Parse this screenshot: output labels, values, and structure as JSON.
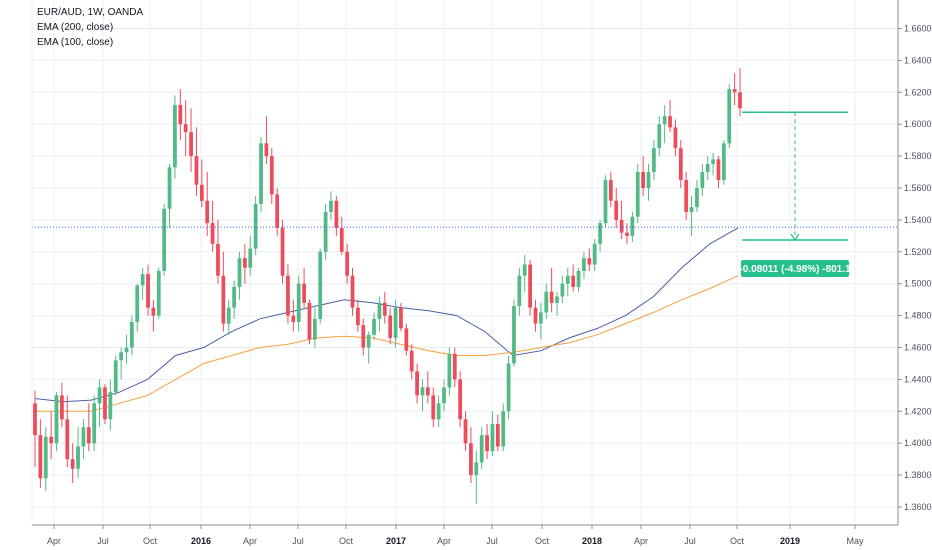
{
  "legend": {
    "symbol": "EUR/AUD, 1W, OANDA",
    "ema200": "EMA (200, close)",
    "ema100": "EMA (100, close)"
  },
  "colors": {
    "up": "#53b987",
    "down": "#eb4d5c",
    "ema200": "#4a5fa8",
    "ema100": "#f7a040",
    "grid": "#e9eef2",
    "hline": "#2962ff",
    "measure": "#26c08a"
  },
  "measure": {
    "label": "-0.08011 (-4.98%) -801.1"
  },
  "chart_data": {
    "type": "candlestick",
    "title": "EUR/AUD, 1W, OANDA",
    "ylim": [
      1.35,
      1.67
    ],
    "y_ticks": [
      "1.66000",
      "1.64000",
      "1.62000",
      "1.60000",
      "1.58000",
      "1.56000",
      "1.54000",
      "1.52000",
      "1.50000",
      "1.48000",
      "1.46000",
      "1.44000",
      "1.42000",
      "1.40000",
      "1.38000",
      "1.36000"
    ],
    "x_ticks": [
      "Apr",
      "Jul",
      "Oct",
      "2016",
      "Apr",
      "Jul",
      "Oct",
      "2017",
      "Apr",
      "Jul",
      "Oct",
      "2018",
      "Apr",
      "Jul",
      "Oct",
      "2019",
      "May"
    ],
    "bold_ticks": [
      "2016",
      "2017",
      "2018",
      "2019"
    ],
    "horizontal_line": 1.5355,
    "measure": {
      "from": 1.6075,
      "to": 1.5274,
      "change": -0.08011,
      "percent": -4.98,
      "pips": -801.1
    },
    "series": [
      {
        "name": "EMA (200, close)",
        "values": [
          1.428,
          1.426,
          1.427,
          1.432,
          1.44,
          1.455,
          1.46,
          1.47,
          1.478,
          1.482,
          1.486,
          1.49,
          1.488,
          1.485,
          1.483,
          1.48,
          1.47,
          1.455,
          1.458,
          1.466,
          1.472,
          1.48,
          1.492,
          1.51,
          1.525,
          1.535
        ]
      },
      {
        "name": "EMA (100, close)",
        "values": [
          1.42,
          1.42,
          1.42,
          1.425,
          1.43,
          1.44,
          1.45,
          1.455,
          1.46,
          1.462,
          1.466,
          1.467,
          1.466,
          1.462,
          1.458,
          1.455,
          1.455,
          1.457,
          1.46,
          1.463,
          1.468,
          1.475,
          1.482,
          1.49,
          1.497,
          1.505
        ]
      }
    ],
    "ohlc": [
      [
        1.425,
        1.433,
        1.385,
        1.405
      ],
      [
        1.405,
        1.415,
        1.372,
        1.378
      ],
      [
        1.378,
        1.41,
        1.37,
        1.404
      ],
      [
        1.404,
        1.42,
        1.39,
        1.4
      ],
      [
        1.4,
        1.432,
        1.395,
        1.43
      ],
      [
        1.43,
        1.438,
        1.41,
        1.415
      ],
      [
        1.415,
        1.43,
        1.385,
        1.39
      ],
      [
        1.39,
        1.4,
        1.375,
        1.384
      ],
      [
        1.384,
        1.41,
        1.378,
        1.398
      ],
      [
        1.398,
        1.415,
        1.39,
        1.41
      ],
      [
        1.41,
        1.425,
        1.395,
        1.4
      ],
      [
        1.4,
        1.43,
        1.395,
        1.425
      ],
      [
        1.425,
        1.44,
        1.41,
        1.435
      ],
      [
        1.435,
        1.437,
        1.412,
        1.415
      ],
      [
        1.415,
        1.44,
        1.408,
        1.432
      ],
      [
        1.432,
        1.455,
        1.43,
        1.452
      ],
      [
        1.452,
        1.46,
        1.44,
        1.457
      ],
      [
        1.457,
        1.468,
        1.45,
        1.46
      ],
      [
        1.46,
        1.48,
        1.455,
        1.476
      ],
      [
        1.476,
        1.5,
        1.47,
        1.499
      ],
      [
        1.499,
        1.51,
        1.49,
        1.506
      ],
      [
        1.506,
        1.512,
        1.48,
        1.485
      ],
      [
        1.485,
        1.49,
        1.47,
        1.48
      ],
      [
        1.48,
        1.51,
        1.478,
        1.508
      ],
      [
        1.508,
        1.55,
        1.505,
        1.547
      ],
      [
        1.547,
        1.575,
        1.535,
        1.573
      ],
      [
        1.573,
        1.618,
        1.566,
        1.612
      ],
      [
        1.612,
        1.622,
        1.59,
        1.6
      ],
      [
        1.6,
        1.615,
        1.58,
        1.595
      ],
      [
        1.595,
        1.61,
        1.57,
        1.58
      ],
      [
        1.58,
        1.598,
        1.555,
        1.562
      ],
      [
        1.562,
        1.578,
        1.548,
        1.552
      ],
      [
        1.552,
        1.57,
        1.53,
        1.538
      ],
      [
        1.538,
        1.552,
        1.52,
        1.525
      ],
      [
        1.525,
        1.54,
        1.5,
        1.505
      ],
      [
        1.505,
        1.52,
        1.47,
        1.475
      ],
      [
        1.475,
        1.49,
        1.468,
        1.485
      ],
      [
        1.485,
        1.502,
        1.478,
        1.498
      ],
      [
        1.498,
        1.52,
        1.49,
        1.516
      ],
      [
        1.516,
        1.525,
        1.5,
        1.51
      ],
      [
        1.51,
        1.53,
        1.505,
        1.522
      ],
      [
        1.522,
        1.555,
        1.518,
        1.55
      ],
      [
        1.55,
        1.592,
        1.545,
        1.588
      ],
      [
        1.588,
        1.605,
        1.575,
        1.58
      ],
      [
        1.58,
        1.585,
        1.55,
        1.556
      ],
      [
        1.556,
        1.56,
        1.53,
        1.535
      ],
      [
        1.535,
        1.54,
        1.5,
        1.505
      ],
      [
        1.505,
        1.512,
        1.475,
        1.48
      ],
      [
        1.48,
        1.49,
        1.47,
        1.476
      ],
      [
        1.476,
        1.505,
        1.47,
        1.5
      ],
      [
        1.5,
        1.51,
        1.485,
        1.488
      ],
      [
        1.488,
        1.49,
        1.462,
        1.465
      ],
      [
        1.465,
        1.485,
        1.46,
        1.478
      ],
      [
        1.478,
        1.522,
        1.475,
        1.52
      ],
      [
        1.52,
        1.55,
        1.515,
        1.545
      ],
      [
        1.545,
        1.558,
        1.54,
        1.552
      ],
      [
        1.552,
        1.555,
        1.53,
        1.535
      ],
      [
        1.535,
        1.542,
        1.518,
        1.52
      ],
      [
        1.52,
        1.525,
        1.5,
        1.505
      ],
      [
        1.505,
        1.51,
        1.48,
        1.485
      ],
      [
        1.485,
        1.49,
        1.47,
        1.474
      ],
      [
        1.474,
        1.478,
        1.455,
        1.46
      ],
      [
        1.46,
        1.47,
        1.45,
        1.468
      ],
      [
        1.468,
        1.482,
        1.465,
        1.478
      ],
      [
        1.478,
        1.492,
        1.47,
        1.488
      ],
      [
        1.488,
        1.495,
        1.475,
        1.48
      ],
      [
        1.48,
        1.485,
        1.462,
        1.466
      ],
      [
        1.466,
        1.49,
        1.46,
        1.485
      ],
      [
        1.485,
        1.488,
        1.47,
        1.472
      ],
      [
        1.472,
        1.475,
        1.455,
        1.458
      ],
      [
        1.458,
        1.462,
        1.44,
        1.445
      ],
      [
        1.445,
        1.45,
        1.425,
        1.43
      ],
      [
        1.43,
        1.44,
        1.42,
        1.435
      ],
      [
        1.435,
        1.445,
        1.425,
        1.43
      ],
      [
        1.43,
        1.435,
        1.41,
        1.415
      ],
      [
        1.415,
        1.43,
        1.41,
        1.425
      ],
      [
        1.425,
        1.44,
        1.42,
        1.435
      ],
      [
        1.435,
        1.46,
        1.43,
        1.456
      ],
      [
        1.456,
        1.46,
        1.435,
        1.44
      ],
      [
        1.44,
        1.445,
        1.41,
        1.415
      ],
      [
        1.415,
        1.42,
        1.395,
        1.4
      ],
      [
        1.4,
        1.41,
        1.375,
        1.38
      ],
      [
        1.38,
        1.395,
        1.362,
        1.388
      ],
      [
        1.388,
        1.41,
        1.384,
        1.405
      ],
      [
        1.405,
        1.412,
        1.39,
        1.395
      ],
      [
        1.395,
        1.42,
        1.392,
        1.412
      ],
      [
        1.412,
        1.418,
        1.395,
        1.398
      ],
      [
        1.398,
        1.425,
        1.395,
        1.42
      ],
      [
        1.42,
        1.455,
        1.415,
        1.45
      ],
      [
        1.45,
        1.49,
        1.448,
        1.486
      ],
      [
        1.486,
        1.51,
        1.48,
        1.505
      ],
      [
        1.505,
        1.518,
        1.495,
        1.512
      ],
      [
        1.512,
        1.515,
        1.48,
        1.485
      ],
      [
        1.485,
        1.49,
        1.47,
        1.475
      ],
      [
        1.475,
        1.488,
        1.465,
        1.482
      ],
      [
        1.482,
        1.5,
        1.478,
        1.495
      ],
      [
        1.495,
        1.51,
        1.482,
        1.488
      ],
      [
        1.488,
        1.495,
        1.48,
        1.492
      ],
      [
        1.492,
        1.505,
        1.488,
        1.5
      ],
      [
        1.5,
        1.51,
        1.492,
        1.505
      ],
      [
        1.505,
        1.512,
        1.495,
        1.498
      ],
      [
        1.498,
        1.51,
        1.495,
        1.508
      ],
      [
        1.508,
        1.52,
        1.503,
        1.516
      ],
      [
        1.516,
        1.522,
        1.508,
        1.512
      ],
      [
        1.512,
        1.528,
        1.508,
        1.525
      ],
      [
        1.525,
        1.54,
        1.52,
        1.538
      ],
      [
        1.538,
        1.568,
        1.535,
        1.565
      ],
      [
        1.565,
        1.57,
        1.548,
        1.552
      ],
      [
        1.552,
        1.56,
        1.535,
        1.54
      ],
      [
        1.54,
        1.552,
        1.528,
        1.532
      ],
      [
        1.532,
        1.538,
        1.525,
        1.53
      ],
      [
        1.53,
        1.545,
        1.526,
        1.542
      ],
      [
        1.542,
        1.575,
        1.538,
        1.57
      ],
      [
        1.57,
        1.58,
        1.555,
        1.56
      ],
      [
        1.56,
        1.575,
        1.552,
        1.57
      ],
      [
        1.57,
        1.59,
        1.565,
        1.585
      ],
      [
        1.585,
        1.605,
        1.58,
        1.6
      ],
      [
        1.6,
        1.612,
        1.588,
        1.605
      ],
      [
        1.605,
        1.615,
        1.595,
        1.598
      ],
      [
        1.598,
        1.603,
        1.58,
        1.585
      ],
      [
        1.585,
        1.59,
        1.56,
        1.565
      ],
      [
        1.565,
        1.57,
        1.54,
        1.545
      ],
      [
        1.545,
        1.555,
        1.53,
        1.548
      ],
      [
        1.548,
        1.565,
        1.545,
        1.56
      ],
      [
        1.56,
        1.575,
        1.555,
        1.57
      ],
      [
        1.57,
        1.58,
        1.565,
        1.575
      ],
      [
        1.575,
        1.582,
        1.568,
        1.578
      ],
      [
        1.578,
        1.58,
        1.56,
        1.565
      ],
      [
        1.565,
        1.59,
        1.562,
        1.588
      ],
      [
        1.588,
        1.625,
        1.585,
        1.622
      ],
      [
        1.622,
        1.632,
        1.612,
        1.62
      ],
      [
        1.62,
        1.635,
        1.605,
        1.61
      ]
    ]
  }
}
